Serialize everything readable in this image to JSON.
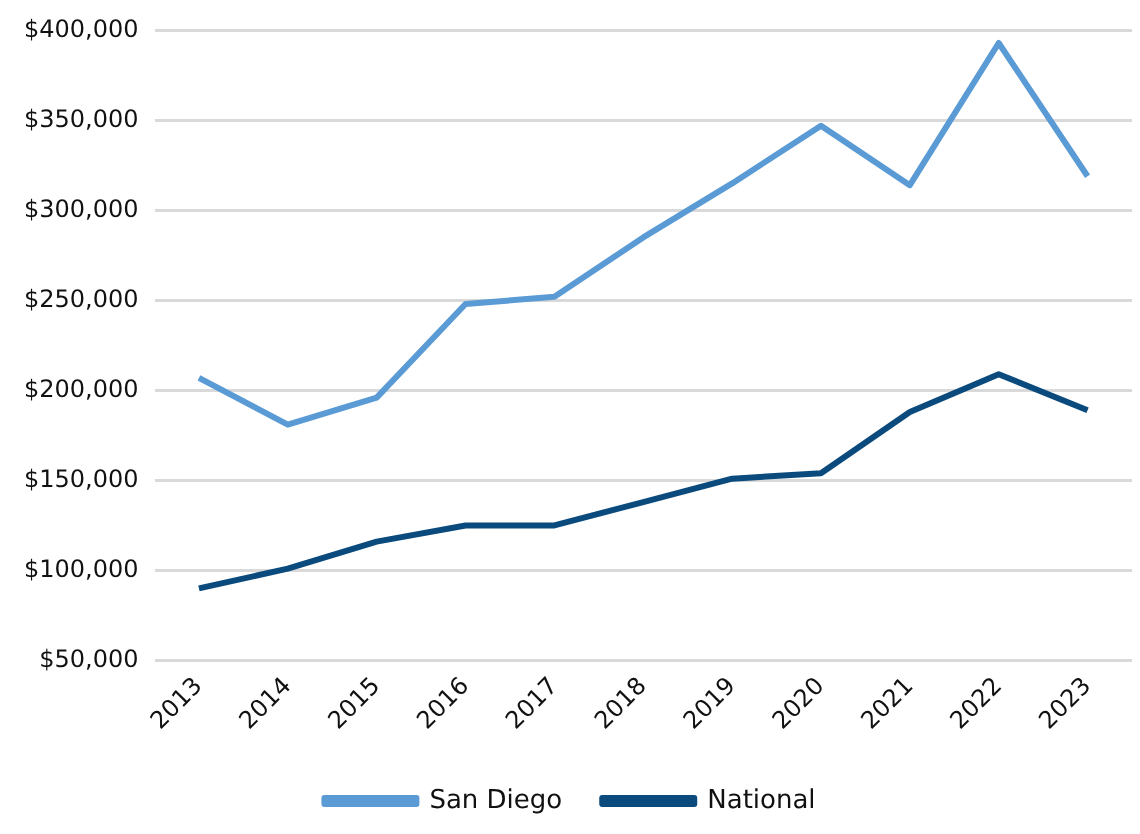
{
  "chart_data": {
    "type": "line",
    "categories": [
      "2013",
      "2014",
      "2015",
      "2016",
      "2017",
      "2018",
      "2019",
      "2020",
      "2021",
      "2022",
      "2023"
    ],
    "series": [
      {
        "name": "San Diego",
        "color": "#5b9bd5",
        "values": [
          207000,
          181000,
          196000,
          248000,
          252000,
          285000,
          315000,
          347000,
          314000,
          393000,
          319000
        ]
      },
      {
        "name": "National",
        "color": "#0b4a7d",
        "values": [
          90000,
          101000,
          116000,
          125000,
          125000,
          138000,
          151000,
          154000,
          188000,
          209000,
          189000
        ]
      }
    ],
    "ylim": [
      50000,
      400000
    ],
    "yticks": [
      {
        "value": 50000,
        "label": "$50,000"
      },
      {
        "value": 100000,
        "label": "$100,000"
      },
      {
        "value": 150000,
        "label": "$150,000"
      },
      {
        "value": 200000,
        "label": "$200,000"
      },
      {
        "value": 250000,
        "label": "$250,000"
      },
      {
        "value": 300000,
        "label": "$300,000"
      },
      {
        "value": 350000,
        "label": "$350,000"
      },
      {
        "value": 400000,
        "label": "$400,000"
      }
    ],
    "grid": "y",
    "legend": "bottom",
    "marker": "none",
    "line_style": "solid"
  }
}
